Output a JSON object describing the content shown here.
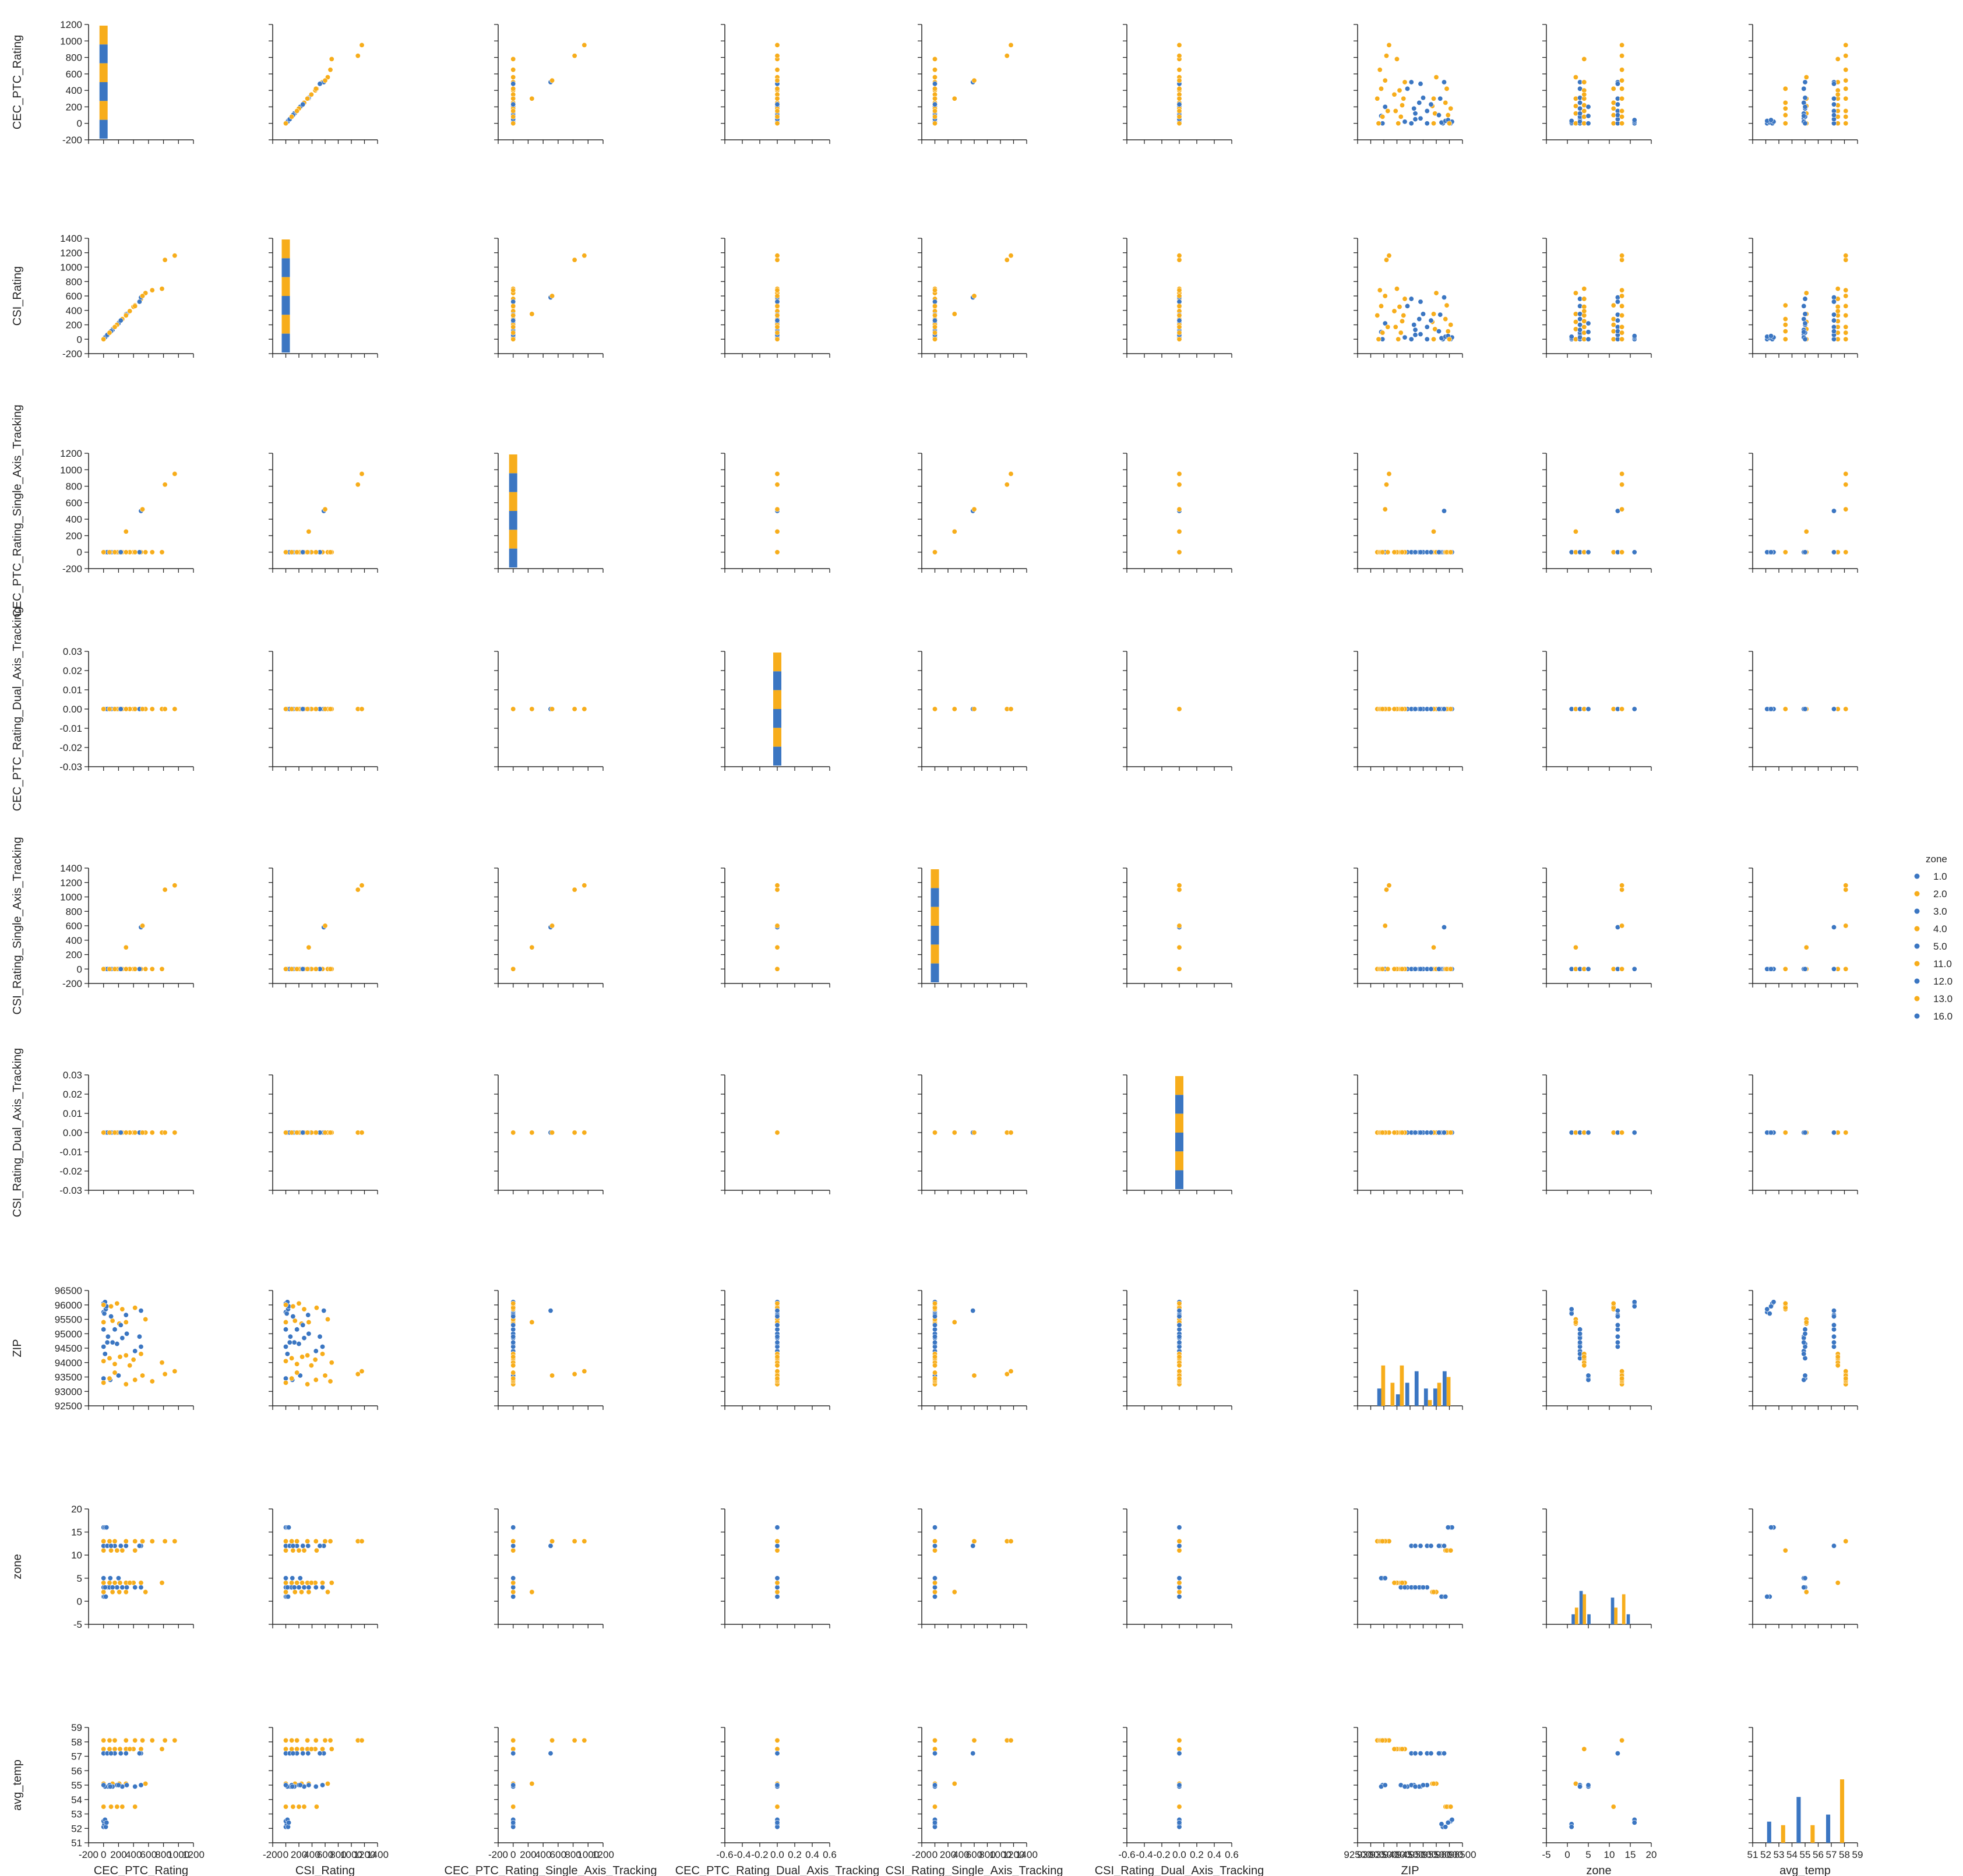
{
  "chart_data": {
    "type": "scatter",
    "kind": "pairplot",
    "hue_title": "zone",
    "legend_position": "right",
    "grid": false,
    "colors": {
      "blue": "#3b76c2",
      "orange": "#f7ad1b"
    },
    "variables": [
      "CEC_PTC_Rating",
      "CSI_Rating",
      "CEC_PTC_Rating_Single_Axis_Tracking",
      "CEC_PTC_Rating_Dual_Axis_Tracking",
      "CSI_Rating_Single_Axis_Tracking",
      "CSI_Rating_Dual_Axis_Tracking",
      "ZIP",
      "zone",
      "avg_temp"
    ],
    "axis_ranges": [
      [
        -200,
        1200
      ],
      [
        -200,
        1400
      ],
      [
        -200,
        1200
      ],
      [
        -0.03,
        0.03
      ],
      [
        -200,
        1400
      ],
      [
        -0.03,
        0.03
      ],
      [
        92500,
        96500
      ],
      [
        -5,
        20
      ],
      [
        51,
        59
      ]
    ],
    "x_ranges": [
      [
        -200,
        1200
      ],
      [
        -200,
        1400
      ],
      [
        -200,
        1200
      ],
      [
        -0.6,
        0.6
      ],
      [
        -200,
        1400
      ],
      [
        -0.6,
        0.6
      ],
      [
        92500,
        96500
      ],
      [
        -5,
        20
      ],
      [
        51,
        59
      ]
    ],
    "x_ticks": [
      [
        "-200",
        "0",
        "200",
        "400",
        "600",
        "800",
        "1000",
        "1200"
      ],
      [
        "-200",
        "0",
        "200",
        "400",
        "600",
        "800",
        "1000",
        "1200",
        "1400"
      ],
      [
        "-200",
        "0",
        "200",
        "400",
        "600",
        "800",
        "1000",
        "1200"
      ],
      [
        "-0.6",
        "-0.4",
        "-0.2",
        "0.0",
        "0.2",
        "0.4",
        "0.6"
      ],
      [
        "-200",
        "0",
        "200",
        "400",
        "600",
        "800",
        "1000",
        "1200",
        "1400"
      ],
      [
        "-0.6",
        "-0.4",
        "-0.2",
        "0.0",
        "0.2",
        "0.4",
        "0.6"
      ],
      [
        "92500",
        "93000",
        "93500",
        "94000",
        "94500",
        "95000",
        "95500",
        "96000",
        "96500"
      ],
      [
        "-5",
        "0",
        "5",
        "10",
        "15",
        "20"
      ],
      [
        "51",
        "52",
        "53",
        "54",
        "55",
        "56",
        "57",
        "58",
        "59"
      ]
    ],
    "y_ticks": [
      [
        "-200",
        "0",
        "200",
        "400",
        "600",
        "800",
        "1000",
        "1200"
      ],
      [
        "-200",
        "0",
        "200",
        "400",
        "600",
        "800",
        "1000",
        "1200",
        "1400"
      ],
      [
        "-200",
        "0",
        "200",
        "400",
        "600",
        "800",
        "1000",
        "1200"
      ],
      [
        "-0.03",
        "-0.02",
        "-0.01",
        "0.00",
        "0.01",
        "0.02",
        "0.03"
      ],
      [
        "-200",
        "0",
        "200",
        "400",
        "600",
        "800",
        "1000",
        "1200",
        "1400"
      ],
      [
        "-0.03",
        "-0.02",
        "-0.01",
        "0.00",
        "0.01",
        "0.02",
        "0.03"
      ],
      [
        "92500",
        "93000",
        "93500",
        "94000",
        "94500",
        "95000",
        "95500",
        "96000",
        "96500"
      ],
      [
        "-5",
        "0",
        "5",
        "10",
        "15",
        "20"
      ],
      [
        "51",
        "52",
        "53",
        "54",
        "55",
        "56",
        "57",
        "58",
        "59"
      ]
    ],
    "legend": [
      {
        "label": "1.0",
        "color": "blue"
      },
      {
        "label": "2.0",
        "color": "orange"
      },
      {
        "label": "3.0",
        "color": "blue"
      },
      {
        "label": "4.0",
        "color": "orange"
      },
      {
        "label": "5.0",
        "color": "blue"
      },
      {
        "label": "11.0",
        "color": "orange"
      },
      {
        "label": "12.0",
        "color": "blue"
      },
      {
        "label": "13.0",
        "color": "orange"
      },
      {
        "label": "16.0",
        "color": "blue"
      }
    ],
    "records": [
      {
        "zone": 1,
        "avg_temp": 52.1,
        "ZIP": 95750,
        "CEC": 0,
        "CSI": 0,
        "CEC_S": 0,
        "CSI_S": 0
      },
      {
        "zone": 1,
        "avg_temp": 52.3,
        "ZIP": 95700,
        "CEC": 10,
        "CSI": 15,
        "CEC_S": 0,
        "CSI_S": 0
      },
      {
        "zone": 1,
        "avg_temp": 52.1,
        "ZIP": 95850,
        "CEC": 30,
        "CSI": 35,
        "CEC_S": 0,
        "CSI_S": 0
      },
      {
        "zone": 16,
        "avg_temp": 52.5,
        "ZIP": 96050,
        "CEC": 0,
        "CSI": 0,
        "CEC_S": 0,
        "CSI_S": 0
      },
      {
        "zone": 16,
        "avg_temp": 52.6,
        "ZIP": 96100,
        "CEC": 20,
        "CSI": 25,
        "CEC_S": 0,
        "CSI_S": 0
      },
      {
        "zone": 16,
        "avg_temp": 52.4,
        "ZIP": 95950,
        "CEC": 40,
        "CSI": 45,
        "CEC_S": 0,
        "CSI_S": 0
      },
      {
        "zone": 2,
        "avg_temp": 55.1,
        "ZIP": 95400,
        "CEC": 0,
        "CSI": 0,
        "CEC_S": 0,
        "CSI_S": 0
      },
      {
        "zone": 2,
        "avg_temp": 55.1,
        "ZIP": 95450,
        "CEC": 120,
        "CSI": 140,
        "CEC_S": 0,
        "CSI_S": 0
      },
      {
        "zone": 2,
        "avg_temp": 55.1,
        "ZIP": 95350,
        "CEC": 210,
        "CSI": 240,
        "CEC_S": 0,
        "CSI_S": 0
      },
      {
        "zone": 2,
        "avg_temp": 55.1,
        "ZIP": 95500,
        "CEC": 560,
        "CSI": 640,
        "CEC_S": 0,
        "CSI_S": 0
      },
      {
        "zone": 2,
        "avg_temp": 55.1,
        "ZIP": 95400,
        "CEC": 300,
        "CSI": 350,
        "CEC_S": 250,
        "CSI_S": 300
      },
      {
        "zone": 3,
        "avg_temp": 55.0,
        "ZIP": 95150,
        "CEC": 0,
        "CSI": 0,
        "CEC_S": 0,
        "CSI_S": 0
      },
      {
        "zone": 3,
        "avg_temp": 54.9,
        "ZIP": 94900,
        "CEC": 60,
        "CSI": 70,
        "CEC_S": 0,
        "CSI_S": 0
      },
      {
        "zone": 3,
        "avg_temp": 55.0,
        "ZIP": 94650,
        "CEC": 180,
        "CSI": 200,
        "CEC_S": 0,
        "CSI_S": 0
      },
      {
        "zone": 3,
        "avg_temp": 54.9,
        "ZIP": 94400,
        "CEC": 420,
        "CSI": 460,
        "CEC_S": 0,
        "CSI_S": 0
      },
      {
        "zone": 3,
        "avg_temp": 55.0,
        "ZIP": 94150,
        "CEC": 80,
        "CSI": 90,
        "CEC_S": 0,
        "CSI_S": 0
      },
      {
        "zone": 3,
        "avg_temp": 54.9,
        "ZIP": 94850,
        "CEC": 250,
        "CSI": 280,
        "CEC_S": 0,
        "CSI_S": 0
      },
      {
        "zone": 3,
        "avg_temp": 55.0,
        "ZIP": 94550,
        "CEC": 500,
        "CSI": 560,
        "CEC_S": 0,
        "CSI_S": 0
      },
      {
        "zone": 3,
        "avg_temp": 54.9,
        "ZIP": 94300,
        "CEC": 20,
        "CSI": 25,
        "CEC_S": 0,
        "CSI_S": 0
      },
      {
        "zone": 3,
        "avg_temp": 55.0,
        "ZIP": 95000,
        "CEC": 310,
        "CSI": 350,
        "CEC_S": 0,
        "CSI_S": 0
      },
      {
        "zone": 3,
        "avg_temp": 54.9,
        "ZIP": 94700,
        "CEC": 120,
        "CSI": 130,
        "CEC_S": 0,
        "CSI_S": 0
      },
      {
        "zone": 4,
        "avg_temp": 57.5,
        "ZIP": 94050,
        "CEC": 0,
        "CSI": 0,
        "CEC_S": 0,
        "CSI_S": 0
      },
      {
        "zone": 4,
        "avg_temp": 57.5,
        "ZIP": 93950,
        "CEC": 150,
        "CSI": 170,
        "CEC_S": 0,
        "CSI_S": 0
      },
      {
        "zone": 4,
        "avg_temp": 57.5,
        "ZIP": 94250,
        "CEC": 300,
        "CSI": 330,
        "CEC_S": 0,
        "CSI_S": 0
      },
      {
        "zone": 4,
        "avg_temp": 57.5,
        "ZIP": 94100,
        "CEC": 400,
        "CSI": 450,
        "CEC_S": 0,
        "CSI_S": 0
      },
      {
        "zone": 4,
        "avg_temp": 57.5,
        "ZIP": 94300,
        "CEC": 500,
        "CSI": 560,
        "CEC_S": 0,
        "CSI_S": 0
      },
      {
        "zone": 4,
        "avg_temp": 57.5,
        "ZIP": 94000,
        "CEC": 780,
        "CSI": 700,
        "CEC_S": 0,
        "CSI_S": 0
      },
      {
        "zone": 4,
        "avg_temp": 57.5,
        "ZIP": 94150,
        "CEC": 80,
        "CSI": 90,
        "CEC_S": 0,
        "CSI_S": 0
      },
      {
        "zone": 4,
        "avg_temp": 57.5,
        "ZIP": 94200,
        "CEC": 220,
        "CSI": 250,
        "CEC_S": 0,
        "CSI_S": 0
      },
      {
        "zone": 4,
        "avg_temp": 57.5,
        "ZIP": 93900,
        "CEC": 350,
        "CSI": 390,
        "CEC_S": 0,
        "CSI_S": 0
      },
      {
        "zone": 5,
        "avg_temp": 55.0,
        "ZIP": 93450,
        "CEC": 0,
        "CSI": 0,
        "CEC_S": 0,
        "CSI_S": 0
      },
      {
        "zone": 5,
        "avg_temp": 54.9,
        "ZIP": 93400,
        "CEC": 90,
        "CSI": 100,
        "CEC_S": 0,
        "CSI_S": 0
      },
      {
        "zone": 5,
        "avg_temp": 55.0,
        "ZIP": 93550,
        "CEC": 200,
        "CSI": 220,
        "CEC_S": 0,
        "CSI_S": 0
      },
      {
        "zone": 11,
        "avg_temp": 53.5,
        "ZIP": 96000,
        "CEC": 0,
        "CSI": 0,
        "CEC_S": 0,
        "CSI_S": 0
      },
      {
        "zone": 11,
        "avg_temp": 53.5,
        "ZIP": 95950,
        "CEC": 100,
        "CSI": 110,
        "CEC_S": 0,
        "CSI_S": 0
      },
      {
        "zone": 11,
        "avg_temp": 53.5,
        "ZIP": 95850,
        "CEC": 250,
        "CSI": 280,
        "CEC_S": 0,
        "CSI_S": 0
      },
      {
        "zone": 11,
        "avg_temp": 53.5,
        "ZIP": 95900,
        "CEC": 420,
        "CSI": 470,
        "CEC_S": 0,
        "CSI_S": 0
      },
      {
        "zone": 11,
        "avg_temp": 53.5,
        "ZIP": 96050,
        "CEC": 180,
        "CSI": 200,
        "CEC_S": 0,
        "CSI_S": 0
      },
      {
        "zone": 12,
        "avg_temp": 57.2,
        "ZIP": 94550,
        "CEC": 0,
        "CSI": 0,
        "CEC_S": 0,
        "CSI_S": 0
      },
      {
        "zone": 12,
        "avg_temp": 57.2,
        "ZIP": 94700,
        "CEC": 50,
        "CSI": 60,
        "CEC_S": 0,
        "CSI_S": 0
      },
      {
        "zone": 12,
        "avg_temp": 57.2,
        "ZIP": 95150,
        "CEC": 150,
        "CSI": 170,
        "CEC_S": 0,
        "CSI_S": 0
      },
      {
        "zone": 12,
        "avg_temp": 57.2,
        "ZIP": 95650,
        "CEC": 300,
        "CSI": 340,
        "CEC_S": 0,
        "CSI_S": 0
      },
      {
        "zone": 12,
        "avg_temp": 57.2,
        "ZIP": 95800,
        "CEC": 500,
        "CSI": 580,
        "CEC_S": 500,
        "CSI_S": 580
      },
      {
        "zone": 12,
        "avg_temp": 57.2,
        "ZIP": 95600,
        "CEC": 100,
        "CSI": 110,
        "CEC_S": 0,
        "CSI_S": 0
      },
      {
        "zone": 12,
        "avg_temp": 57.2,
        "ZIP": 95300,
        "CEC": 230,
        "CSI": 260,
        "CEC_S": 0,
        "CSI_S": 0
      },
      {
        "zone": 12,
        "avg_temp": 57.2,
        "ZIP": 94900,
        "CEC": 480,
        "CSI": 520,
        "CEC_S": 0,
        "CSI_S": 0
      },
      {
        "zone": 13,
        "avg_temp": 58.1,
        "ZIP": 93300,
        "CEC": 0,
        "CSI": 0,
        "CEC_S": 0,
        "CSI_S": 0
      },
      {
        "zone": 13,
        "avg_temp": 58.1,
        "ZIP": 93650,
        "CEC": 150,
        "CSI": 170,
        "CEC_S": 0,
        "CSI_S": 0
      },
      {
        "zone": 13,
        "avg_temp": 58.1,
        "ZIP": 93600,
        "CEC": 820,
        "CSI": 1100,
        "CEC_S": 820,
        "CSI_S": 1100
      },
      {
        "zone": 13,
        "avg_temp": 58.1,
        "ZIP": 93700,
        "CEC": 950,
        "CSI": 1160,
        "CEC_S": 950,
        "CSI_S": 1160
      },
      {
        "zone": 13,
        "avg_temp": 58.1,
        "ZIP": 93550,
        "CEC": 520,
        "CSI": 600,
        "CEC_S": 520,
        "CSI_S": 600
      },
      {
        "zone": 13,
        "avg_temp": 58.1,
        "ZIP": 93250,
        "CEC": 300,
        "CSI": 330,
        "CEC_S": 0,
        "CSI_S": 0
      },
      {
        "zone": 13,
        "avg_temp": 58.1,
        "ZIP": 93350,
        "CEC": 650,
        "CSI": 680,
        "CEC_S": 0,
        "CSI_S": 0
      },
      {
        "zone": 13,
        "avg_temp": 58.1,
        "ZIP": 93400,
        "CEC": 420,
        "CSI": 460,
        "CEC_S": 0,
        "CSI_S": 0
      },
      {
        "zone": 13,
        "avg_temp": 58.1,
        "ZIP": 93450,
        "CEC": 80,
        "CSI": 90,
        "CEC_S": 0,
        "CSI_S": 0
      }
    ]
  }
}
